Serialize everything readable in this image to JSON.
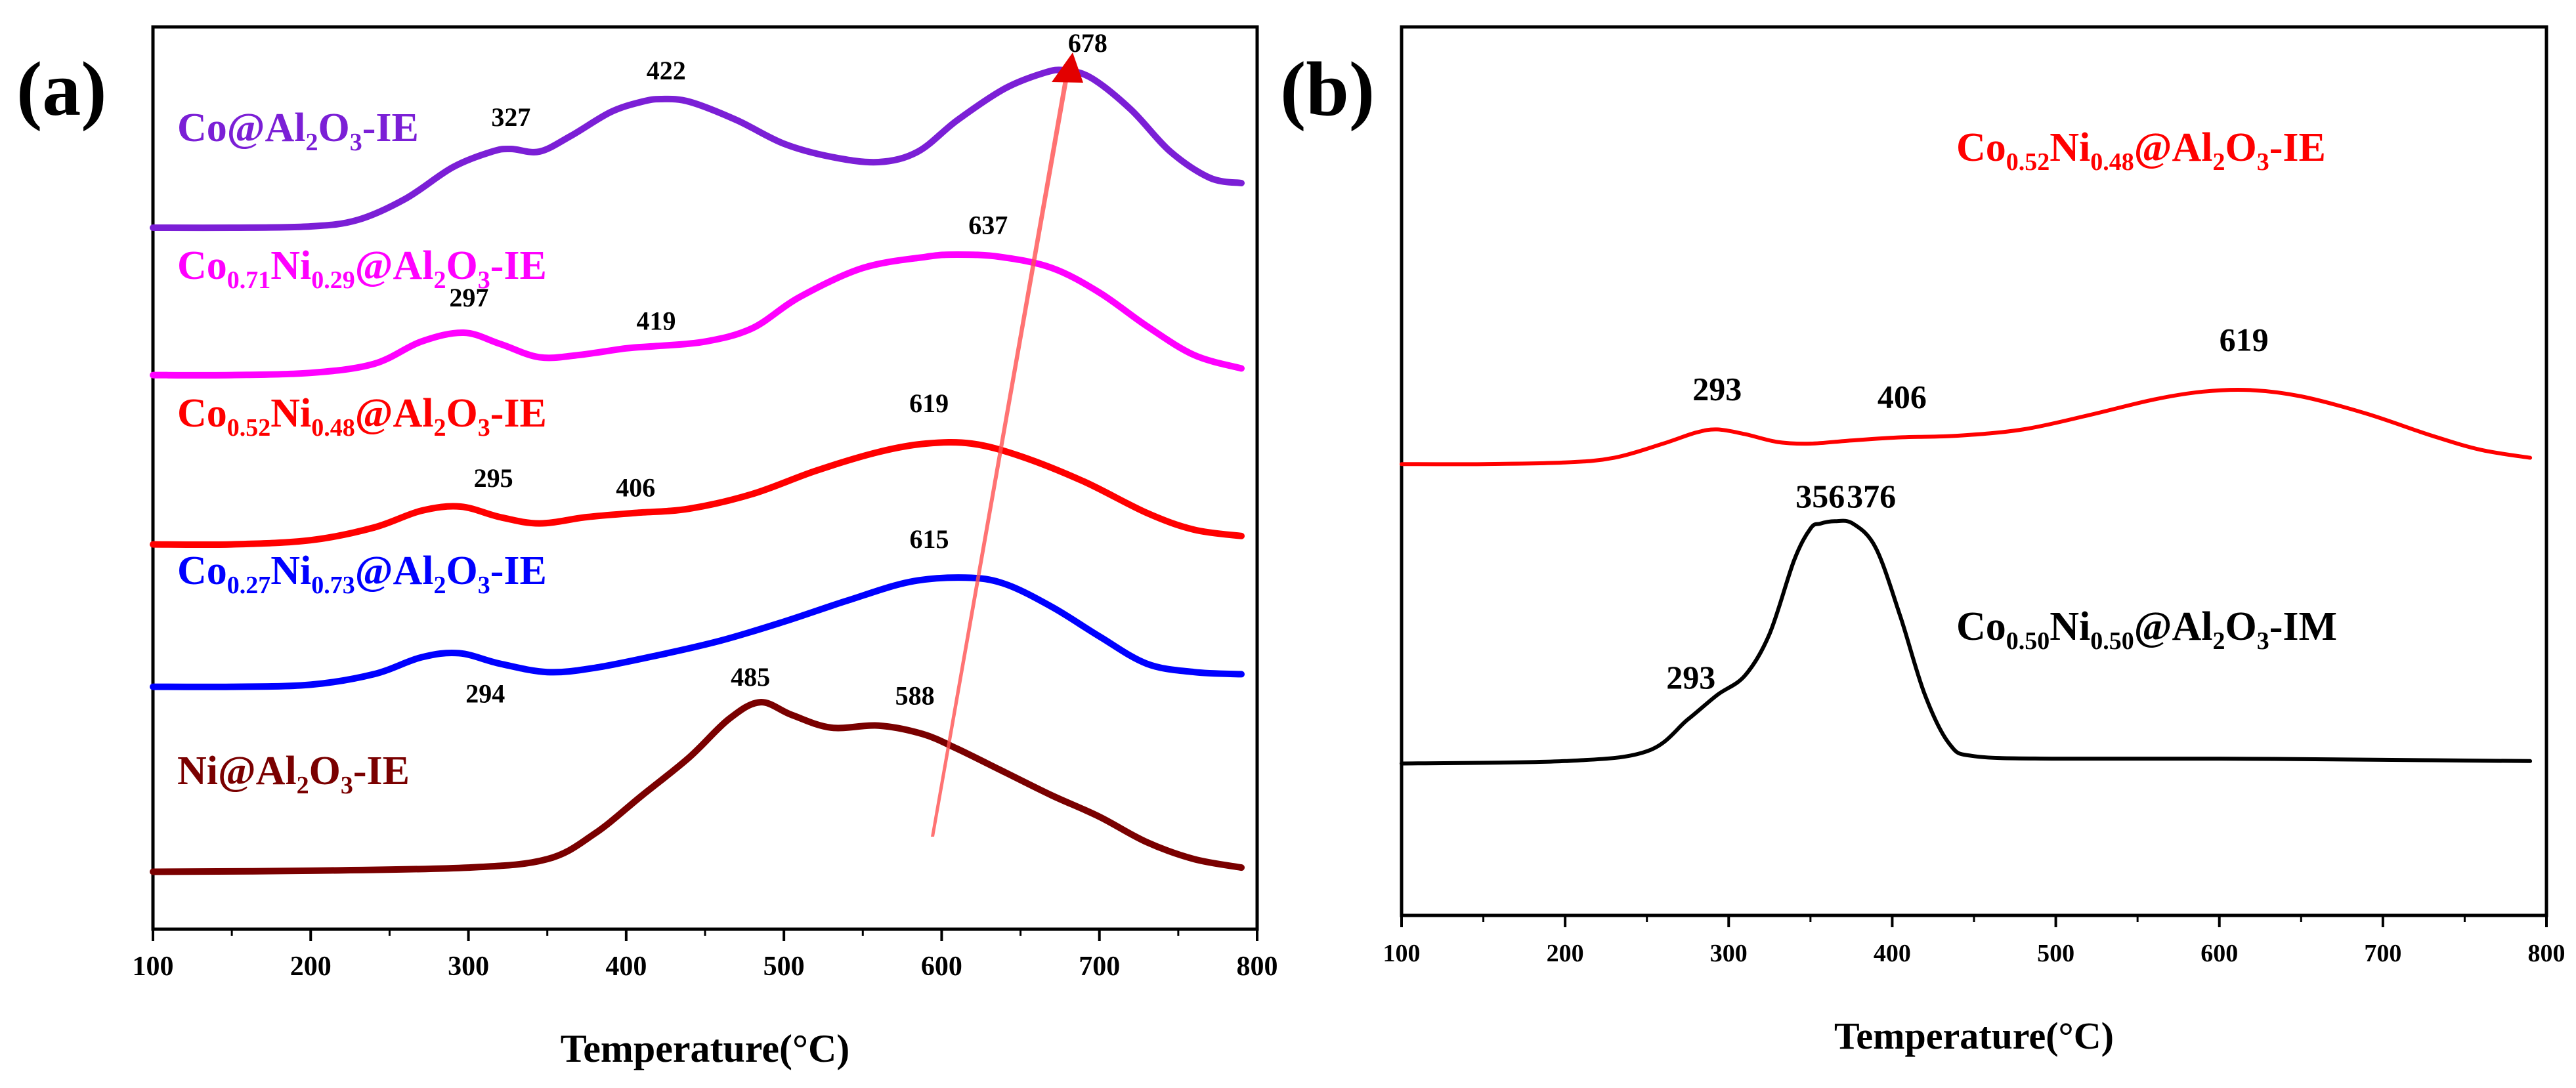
{
  "chart_data": [
    {
      "panel_label": "(a)",
      "type": "line",
      "title": "",
      "xlabel": "Temperature(°C)",
      "ylabel": "",
      "xlim": [
        100,
        800
      ],
      "x_ticks": [
        "100",
        "200",
        "300",
        "400",
        "500",
        "600",
        "700",
        "800"
      ],
      "yticks_shown": false,
      "series": [
        {
          "name": "Co@Al₂O₃-IE",
          "color": "#7b1fd6",
          "label_parts": [
            [
              "Co@Al",
              ""
            ],
            [
              "2",
              "sub"
            ],
            [
              "O",
              ""
            ],
            [
              "3",
              "sub"
            ],
            [
              "-IE",
              ""
            ]
          ],
          "points": [
            [
              100,
              0.01
            ],
            [
              150,
              0.01
            ],
            [
              200,
              0.015
            ],
            [
              230,
              0.04
            ],
            [
              260,
              0.12
            ],
            [
              290,
              0.24
            ],
            [
              315,
              0.3
            ],
            [
              327,
              0.31
            ],
            [
              345,
              0.3
            ],
            [
              365,
              0.36
            ],
            [
              390,
              0.45
            ],
            [
              410,
              0.49
            ],
            [
              422,
              0.5
            ],
            [
              440,
              0.49
            ],
            [
              470,
              0.42
            ],
            [
              500,
              0.33
            ],
            [
              530,
              0.28
            ],
            [
              560,
              0.26
            ],
            [
              585,
              0.3
            ],
            [
              610,
              0.42
            ],
            [
              640,
              0.54
            ],
            [
              665,
              0.6
            ],
            [
              678,
              0.61
            ],
            [
              695,
              0.58
            ],
            [
              720,
              0.46
            ],
            [
              745,
              0.3
            ],
            [
              770,
              0.2
            ],
            [
              790,
              0.18
            ]
          ],
          "peaks": [
            {
              "x": 327,
              "label": "327"
            },
            {
              "x": 422,
              "label": "422"
            },
            {
              "x": 678,
              "label": "678"
            }
          ]
        },
        {
          "name": "Co₀.₇₁Ni₀.₂₉@Al₂O₃-IE",
          "color": "#ff00ff",
          "label_parts": [
            [
              "Co",
              ""
            ],
            [
              "0.71",
              "sub"
            ],
            [
              "Ni",
              ""
            ],
            [
              "0.29",
              "sub"
            ],
            [
              "@Al",
              ""
            ],
            [
              "2",
              "sub"
            ],
            [
              "O",
              ""
            ],
            [
              "3",
              "sub"
            ],
            [
              "-IE",
              ""
            ]
          ],
          "points": [
            [
              100,
              0.01
            ],
            [
              150,
              0.01
            ],
            [
              200,
              0.02
            ],
            [
              240,
              0.06
            ],
            [
              270,
              0.16
            ],
            [
              297,
              0.2
            ],
            [
              320,
              0.15
            ],
            [
              345,
              0.09
            ],
            [
              370,
              0.1
            ],
            [
              400,
              0.13
            ],
            [
              419,
              0.14
            ],
            [
              450,
              0.16
            ],
            [
              480,
              0.22
            ],
            [
              510,
              0.36
            ],
            [
              550,
              0.49
            ],
            [
              590,
              0.54
            ],
            [
              610,
              0.55
            ],
            [
              637,
              0.54
            ],
            [
              670,
              0.49
            ],
            [
              700,
              0.38
            ],
            [
              730,
              0.23
            ],
            [
              760,
              0.1
            ],
            [
              790,
              0.04
            ]
          ],
          "peaks": [
            {
              "x": 297,
              "label": "297"
            },
            {
              "x": 419,
              "label": "419"
            },
            {
              "x": 637,
              "label": "637"
            }
          ]
        },
        {
          "name": "Co₀.₅₂Ni₀.₄₈@Al₂O₃-IE",
          "color": "#ff0000",
          "label_parts": [
            [
              "Co",
              ""
            ],
            [
              "0.52",
              "sub"
            ],
            [
              "Ni",
              ""
            ],
            [
              "0.48",
              "sub"
            ],
            [
              "@Al",
              ""
            ],
            [
              "2",
              "sub"
            ],
            [
              "O",
              ""
            ],
            [
              "3",
              "sub"
            ],
            [
              "-IE",
              ""
            ]
          ],
          "points": [
            [
              100,
              0.02
            ],
            [
              150,
              0.02
            ],
            [
              200,
              0.04
            ],
            [
              240,
              0.1
            ],
            [
              270,
              0.18
            ],
            [
              295,
              0.2
            ],
            [
              320,
              0.15
            ],
            [
              345,
              0.12
            ],
            [
              375,
              0.15
            ],
            [
              406,
              0.17
            ],
            [
              440,
              0.19
            ],
            [
              480,
              0.26
            ],
            [
              520,
              0.37
            ],
            [
              560,
              0.46
            ],
            [
              590,
              0.5
            ],
            [
              619,
              0.5
            ],
            [
              650,
              0.44
            ],
            [
              690,
              0.32
            ],
            [
              730,
              0.17
            ],
            [
              760,
              0.09
            ],
            [
              790,
              0.06
            ]
          ],
          "peaks": [
            {
              "x": 295,
              "label": "295"
            },
            {
              "x": 406,
              "label": "406"
            },
            {
              "x": 619,
              "label": "619"
            }
          ]
        },
        {
          "name": "Co₀.₂₇Ni₀.₇₃@Al₂O₃-IE",
          "color": "#0000ff",
          "label_parts": [
            [
              "Co",
              ""
            ],
            [
              "0.27",
              "sub"
            ],
            [
              "Ni",
              ""
            ],
            [
              "0.73",
              "sub"
            ],
            [
              "@Al",
              ""
            ],
            [
              "2",
              "sub"
            ],
            [
              "O",
              ""
            ],
            [
              "3",
              "sub"
            ],
            [
              "-IE",
              ""
            ]
          ],
          "points": [
            [
              100,
              0.02
            ],
            [
              150,
              0.02
            ],
            [
              200,
              0.03
            ],
            [
              240,
              0.08
            ],
            [
              270,
              0.16
            ],
            [
              294,
              0.18
            ],
            [
              320,
              0.13
            ],
            [
              350,
              0.09
            ],
            [
              380,
              0.11
            ],
            [
              420,
              0.17
            ],
            [
              460,
              0.24
            ],
            [
              500,
              0.33
            ],
            [
              540,
              0.43
            ],
            [
              580,
              0.52
            ],
            [
              615,
              0.54
            ],
            [
              640,
              0.51
            ],
            [
              670,
              0.4
            ],
            [
              700,
              0.26
            ],
            [
              730,
              0.13
            ],
            [
              760,
              0.09
            ],
            [
              790,
              0.08
            ]
          ],
          "peaks": [
            {
              "x": 294,
              "label": "294"
            },
            {
              "x": 615,
              "label": "615"
            }
          ]
        },
        {
          "name": "Ni@Al₂O₃-IE",
          "color": "#7a0000",
          "label_parts": [
            [
              "Ni@Al",
              ""
            ],
            [
              "2",
              "sub"
            ],
            [
              "O",
              ""
            ],
            [
              "3",
              "sub"
            ],
            [
              "-IE",
              ""
            ]
          ],
          "points": [
            [
              100,
              0.02
            ],
            [
              200,
              0.025
            ],
            [
              300,
              0.04
            ],
            [
              350,
              0.08
            ],
            [
              380,
              0.2
            ],
            [
              410,
              0.38
            ],
            [
              440,
              0.56
            ],
            [
              465,
              0.74
            ],
            [
              485,
              0.82
            ],
            [
              505,
              0.76
            ],
            [
              530,
              0.7
            ],
            [
              560,
              0.71
            ],
            [
              588,
              0.67
            ],
            [
              610,
              0.6
            ],
            [
              640,
              0.49
            ],
            [
              670,
              0.38
            ],
            [
              700,
              0.28
            ],
            [
              730,
              0.16
            ],
            [
              760,
              0.08
            ],
            [
              790,
              0.04
            ]
          ],
          "peaks": [
            {
              "x": 485,
              "label": "485"
            },
            {
              "x": 588,
              "label": "588"
            }
          ]
        }
      ]
    },
    {
      "panel_label": "(b)",
      "type": "line",
      "title": "",
      "xlabel": "Temperature(°C)",
      "ylabel": "",
      "xlim": [
        100,
        800
      ],
      "x_ticks": [
        "100",
        "200",
        "300",
        "400",
        "500",
        "600",
        "700",
        "800"
      ],
      "yticks_shown": false,
      "series": [
        {
          "name": "Co₀.₅₂Ni₀.₄₈@Al₂O₃-IE",
          "color": "#ff0000",
          "label_parts": [
            [
              "Co",
              ""
            ],
            [
              "0.52",
              "sub"
            ],
            [
              "Ni",
              ""
            ],
            [
              "0.48",
              "sub"
            ],
            [
              "@Al",
              ""
            ],
            [
              "2",
              "sub"
            ],
            [
              "O",
              ""
            ],
            [
              "3",
              "sub"
            ],
            [
              "-IE",
              ""
            ]
          ],
          "points": [
            [
              100,
              0.02
            ],
            [
              150,
              0.02
            ],
            [
              200,
              0.03
            ],
            [
              230,
              0.06
            ],
            [
              260,
              0.15
            ],
            [
              280,
              0.22
            ],
            [
              293,
              0.24
            ],
            [
              310,
              0.21
            ],
            [
              330,
              0.16
            ],
            [
              350,
              0.15
            ],
            [
              375,
              0.17
            ],
            [
              406,
              0.19
            ],
            [
              440,
              0.2
            ],
            [
              480,
              0.24
            ],
            [
              520,
              0.33
            ],
            [
              560,
              0.43
            ],
            [
              590,
              0.48
            ],
            [
              619,
              0.49
            ],
            [
              650,
              0.45
            ],
            [
              690,
              0.34
            ],
            [
              730,
              0.2
            ],
            [
              760,
              0.11
            ],
            [
              790,
              0.06
            ]
          ],
          "peaks": [
            {
              "x": 293,
              "label": "293"
            },
            {
              "x": 406,
              "label": "406"
            },
            {
              "x": 619,
              "label": "619"
            }
          ]
        },
        {
          "name": "Co₀.₅₀Ni₀.₅₀@Al₂O₃-IM",
          "color": "#000000",
          "label_parts": [
            [
              "Co",
              ""
            ],
            [
              "0.50",
              "sub"
            ],
            [
              "Ni",
              ""
            ],
            [
              "0.50",
              "sub"
            ],
            [
              "@Al",
              ""
            ],
            [
              "2",
              "sub"
            ],
            [
              "O",
              ""
            ],
            [
              "3",
              "sub"
            ],
            [
              "-IM",
              ""
            ]
          ],
          "points": [
            [
              100,
              0.02
            ],
            [
              200,
              0.03
            ],
            [
              250,
              0.07
            ],
            [
              275,
              0.2
            ],
            [
              293,
              0.3
            ],
            [
              310,
              0.38
            ],
            [
              325,
              0.55
            ],
            [
              340,
              0.85
            ],
            [
              350,
              0.98
            ],
            [
              356,
              1.0
            ],
            [
              365,
              1.01
            ],
            [
              376,
              1.0
            ],
            [
              390,
              0.9
            ],
            [
              405,
              0.62
            ],
            [
              420,
              0.3
            ],
            [
              435,
              0.1
            ],
            [
              450,
              0.05
            ],
            [
              500,
              0.04
            ],
            [
              600,
              0.04
            ],
            [
              700,
              0.035
            ],
            [
              790,
              0.03
            ]
          ],
          "peaks": [
            {
              "x": 293,
              "label": "293"
            },
            {
              "x": 356,
              "label": "356"
            },
            {
              "x": 376,
              "label": "376"
            }
          ]
        }
      ]
    }
  ]
}
